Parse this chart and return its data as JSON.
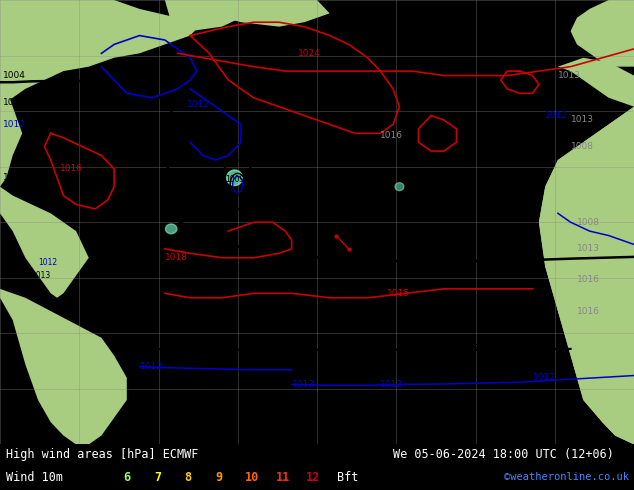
{
  "title_left": "High wind areas [hPa] ECMWF",
  "title_right": "We 05-06-2024 18:00 UTC (12+06)",
  "label_wind": "Wind 10m",
  "label_bft": "Bft",
  "copyright": "©weatheronline.co.uk",
  "bft_values": [
    "6",
    "7",
    "8",
    "9",
    "10",
    "11",
    "12"
  ],
  "bft_colors": [
    "#99ff66",
    "#ffff00",
    "#ffcc00",
    "#ff9900",
    "#ff6600",
    "#ff3300",
    "#cc0000"
  ],
  "figsize": [
    6.34,
    4.9
  ],
  "dpi": 100,
  "font_size_title": 8.5,
  "font_size_legend": 8.5,
  "map_bg": "#d4dce8",
  "land_color": "#a8cc80",
  "land_color2": "#90c060",
  "grid_color": "#888888",
  "ocean_color": "#ccd8e4",
  "isobar_black": "#000000",
  "isobar_blue": "#0000cc",
  "isobar_red": "#cc0000",
  "label_color_black": "#000000",
  "label_color_blue": "#0000cc",
  "label_color_red": "#cc0000",
  "label_color_gray": "#888888",
  "bottom_bg": "#000000",
  "text_color": "#ffffff"
}
